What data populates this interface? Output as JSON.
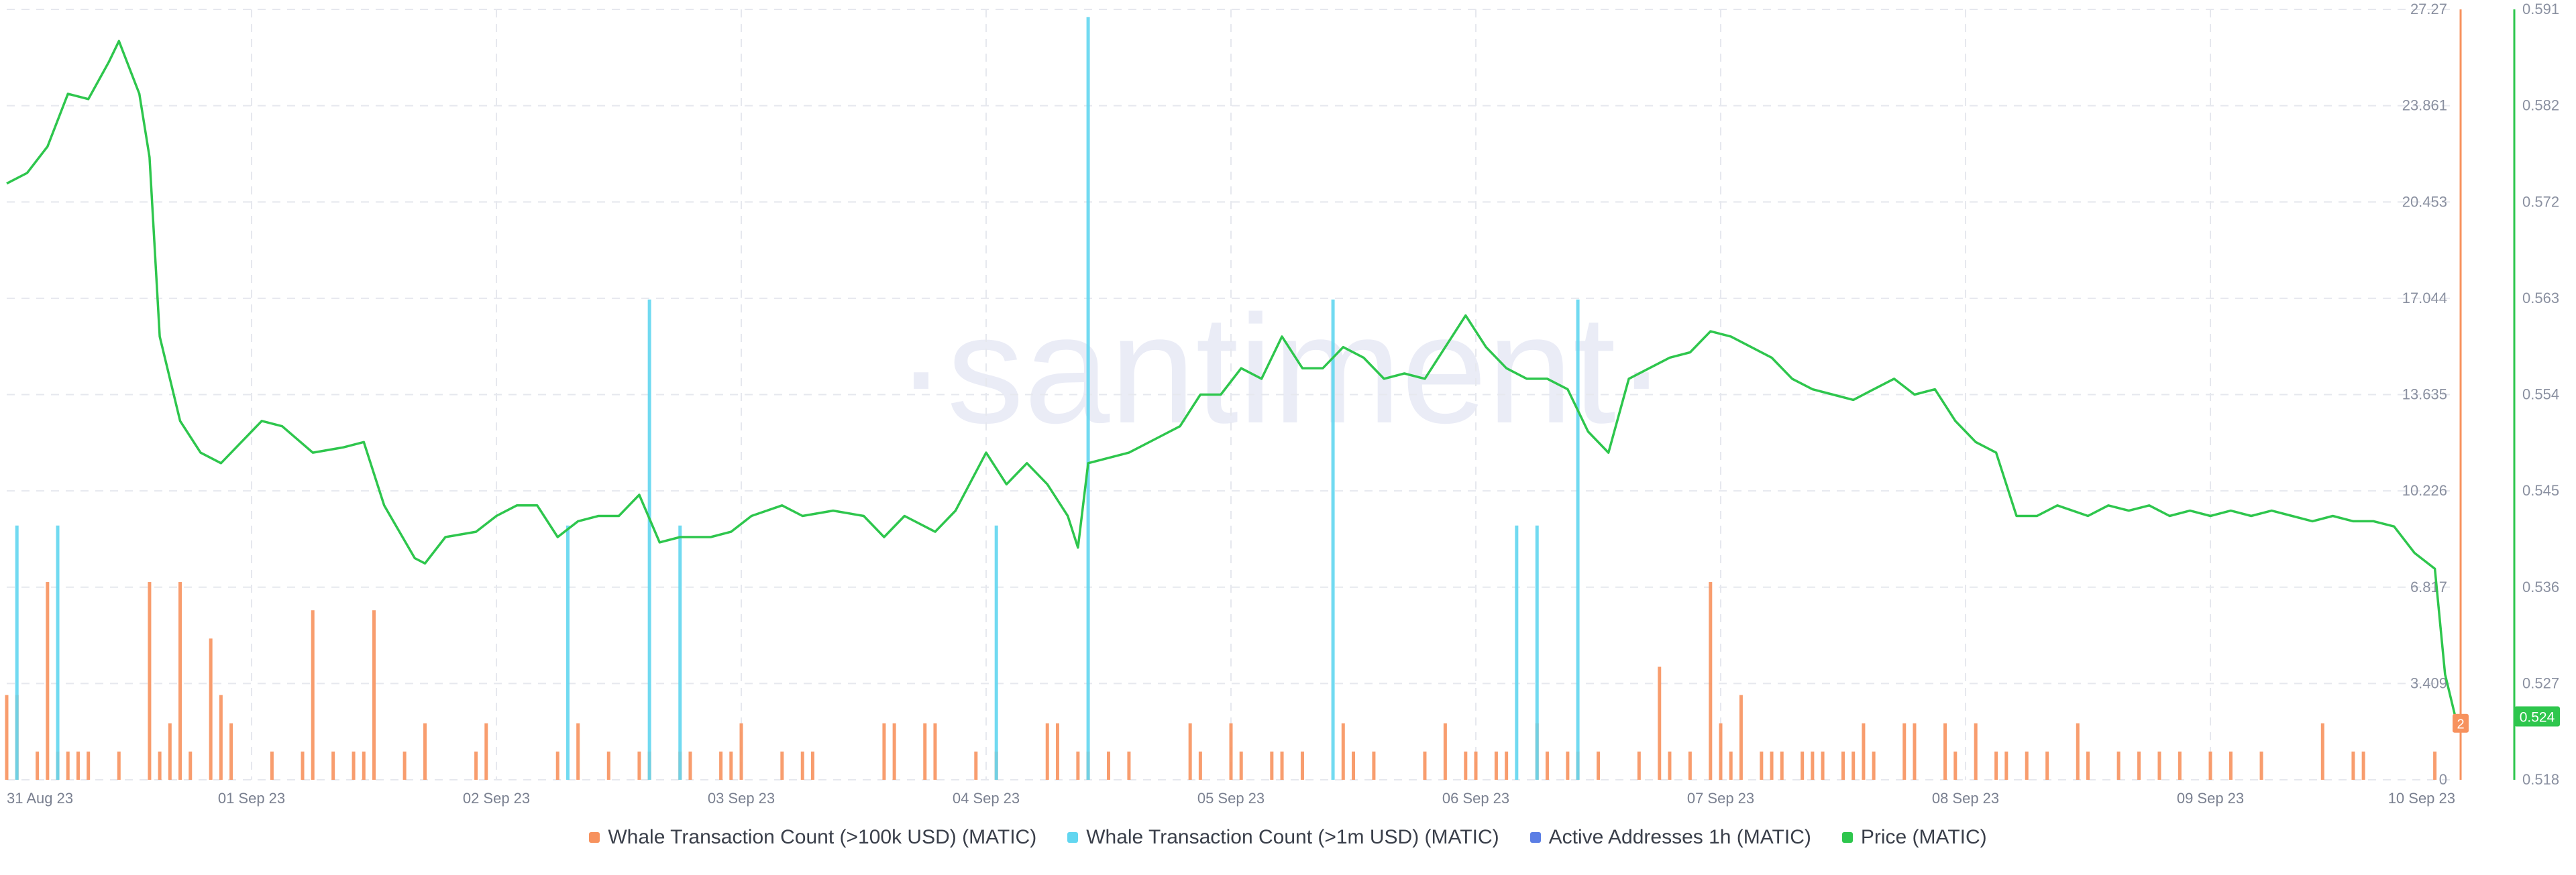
{
  "watermark": "·santiment·",
  "legend": [
    {
      "label": "Whale Transaction Count (>100k USD) (MATIC)",
      "color": "#f7925e"
    },
    {
      "label": "Whale Transaction Count (>1m USD) (MATIC)",
      "color": "#62d6f0"
    },
    {
      "label": "Active Addresses 1h (MATIC)",
      "color": "#5b7ee5"
    },
    {
      "label": "Price (MATIC)",
      "color": "#2ec64d"
    }
  ],
  "chart_data": {
    "type": "bar",
    "x_ticks": [
      "31 Aug 23",
      "01 Sep 23",
      "02 Sep 23",
      "03 Sep 23",
      "04 Sep 23",
      "05 Sep 23",
      "06 Sep 23",
      "07 Sep 23",
      "08 Sep 23",
      "09 Sep 23",
      "10 Sep 23"
    ],
    "x_range": [
      0,
      240
    ],
    "count_axis": {
      "ticks": [
        "0",
        "3.409",
        "6.817",
        "10.226",
        "13.635",
        "17.044",
        "20.453",
        "23.861",
        "27.27"
      ],
      "ylim": [
        0,
        27.27
      ],
      "color": "#f7925e",
      "last_value_label": "2"
    },
    "price_axis": {
      "ticks": [
        "0.518",
        "0.527",
        "0.536",
        "0.545",
        "0.554",
        "0.563",
        "0.572",
        "0.582",
        "0.591"
      ],
      "ylim": [
        0.518,
        0.591
      ],
      "color": "#2ec64d",
      "last_value_label": "0.524"
    },
    "grid": true,
    "series": [
      {
        "name": "Whale Transaction Count (>100k USD) (MATIC)",
        "type": "bar",
        "axis": "count",
        "color": "#f7925e",
        "points": [
          [
            0,
            3
          ],
          [
            1,
            3
          ],
          [
            3,
            1
          ],
          [
            4,
            7
          ],
          [
            5,
            1
          ],
          [
            6,
            1
          ],
          [
            7,
            1
          ],
          [
            8,
            1
          ],
          [
            11,
            1
          ],
          [
            14,
            7
          ],
          [
            15,
            1
          ],
          [
            16,
            2
          ],
          [
            17,
            7
          ],
          [
            18,
            1
          ],
          [
            20,
            5
          ],
          [
            21,
            3
          ],
          [
            22,
            2
          ],
          [
            26,
            1
          ],
          [
            29,
            1
          ],
          [
            30,
            6
          ],
          [
            32,
            1
          ],
          [
            34,
            1
          ],
          [
            35,
            1
          ],
          [
            36,
            6
          ],
          [
            39,
            1
          ],
          [
            41,
            2
          ],
          [
            46,
            1
          ],
          [
            47,
            2
          ],
          [
            54,
            1
          ],
          [
            56,
            2
          ],
          [
            59,
            1
          ],
          [
            62,
            1
          ],
          [
            63,
            1
          ],
          [
            66,
            1
          ],
          [
            67,
            1
          ],
          [
            70,
            1
          ],
          [
            71,
            1
          ],
          [
            72,
            2
          ],
          [
            76,
            1
          ],
          [
            78,
            1
          ],
          [
            79,
            1
          ],
          [
            86,
            2
          ],
          [
            87,
            2
          ],
          [
            90,
            2
          ],
          [
            91,
            2
          ],
          [
            95,
            1
          ],
          [
            97,
            1
          ],
          [
            102,
            2
          ],
          [
            103,
            2
          ],
          [
            105,
            1
          ],
          [
            106,
            1
          ],
          [
            108,
            1
          ],
          [
            110,
            1
          ],
          [
            116,
            2
          ],
          [
            117,
            1
          ],
          [
            120,
            2
          ],
          [
            121,
            1
          ],
          [
            124,
            1
          ],
          [
            125,
            1
          ],
          [
            127,
            1
          ],
          [
            131,
            2
          ],
          [
            132,
            1
          ],
          [
            134,
            1
          ],
          [
            139,
            1
          ],
          [
            141,
            2
          ],
          [
            143,
            1
          ],
          [
            144,
            1
          ],
          [
            146,
            1
          ],
          [
            147,
            1
          ],
          [
            150,
            2
          ],
          [
            151,
            1
          ],
          [
            153,
            1
          ],
          [
            154,
            1
          ],
          [
            156,
            1
          ],
          [
            160,
            1
          ],
          [
            162,
            4
          ],
          [
            163,
            1
          ],
          [
            165,
            1
          ],
          [
            167,
            7
          ],
          [
            168,
            2
          ],
          [
            169,
            1
          ],
          [
            170,
            3
          ],
          [
            172,
            1
          ],
          [
            173,
            1
          ],
          [
            174,
            1
          ],
          [
            176,
            1
          ],
          [
            177,
            1
          ],
          [
            178,
            1
          ],
          [
            180,
            1
          ],
          [
            181,
            1
          ],
          [
            182,
            2
          ],
          [
            183,
            1
          ],
          [
            186,
            2
          ],
          [
            187,
            2
          ],
          [
            190,
            2
          ],
          [
            191,
            1
          ],
          [
            193,
            2
          ],
          [
            195,
            1
          ],
          [
            196,
            1
          ],
          [
            198,
            1
          ],
          [
            200,
            1
          ],
          [
            203,
            2
          ],
          [
            204,
            1
          ],
          [
            207,
            1
          ],
          [
            209,
            1
          ],
          [
            211,
            1
          ],
          [
            213,
            1
          ],
          [
            216,
            1
          ],
          [
            218,
            1
          ],
          [
            221,
            1
          ],
          [
            227,
            2
          ],
          [
            230,
            1
          ],
          [
            231,
            1
          ],
          [
            238,
            1
          ]
        ]
      },
      {
        "name": "Whale Transaction Count (>1m USD) (MATIC)",
        "type": "bar",
        "axis": "count",
        "color": "#62d6f0",
        "points": [
          [
            1,
            9
          ],
          [
            5,
            9
          ],
          [
            55,
            9
          ],
          [
            63,
            17
          ],
          [
            66,
            9
          ],
          [
            97,
            9
          ],
          [
            106,
            27
          ],
          [
            130,
            17
          ],
          [
            148,
            9
          ],
          [
            150,
            9
          ],
          [
            154,
            17
          ]
        ]
      },
      {
        "name": "Price (MATIC)",
        "type": "line",
        "axis": "price",
        "color": "#2ec64d",
        "points": [
          [
            0,
            0.5745
          ],
          [
            2,
            0.5755
          ],
          [
            4,
            0.578
          ],
          [
            6,
            0.583
          ],
          [
            8,
            0.5825
          ],
          [
            10,
            0.586
          ],
          [
            11,
            0.588
          ],
          [
            13,
            0.583
          ],
          [
            14,
            0.577
          ],
          [
            15,
            0.56
          ],
          [
            17,
            0.552
          ],
          [
            19,
            0.549
          ],
          [
            21,
            0.548
          ],
          [
            23,
            0.55
          ],
          [
            25,
            0.552
          ],
          [
            27,
            0.5515
          ],
          [
            30,
            0.549
          ],
          [
            33,
            0.5495
          ],
          [
            35,
            0.55
          ],
          [
            37,
            0.544
          ],
          [
            40,
            0.539
          ],
          [
            41,
            0.5385
          ],
          [
            43,
            0.541
          ],
          [
            46,
            0.5415
          ],
          [
            48,
            0.543
          ],
          [
            50,
            0.544
          ],
          [
            52,
            0.544
          ],
          [
            54,
            0.541
          ],
          [
            56,
            0.5425
          ],
          [
            58,
            0.543
          ],
          [
            60,
            0.543
          ],
          [
            62,
            0.545
          ],
          [
            64,
            0.5405
          ],
          [
            66,
            0.541
          ],
          [
            69,
            0.541
          ],
          [
            71,
            0.5415
          ],
          [
            73,
            0.543
          ],
          [
            76,
            0.544
          ],
          [
            78,
            0.543
          ],
          [
            81,
            0.5435
          ],
          [
            84,
            0.543
          ],
          [
            86,
            0.541
          ],
          [
            88,
            0.543
          ],
          [
            91,
            0.5415
          ],
          [
            93,
            0.5435
          ],
          [
            96,
            0.549
          ],
          [
            98,
            0.546
          ],
          [
            100,
            0.548
          ],
          [
            102,
            0.546
          ],
          [
            104,
            0.543
          ],
          [
            105,
            0.54
          ],
          [
            106,
            0.548
          ],
          [
            108,
            0.5485
          ],
          [
            110,
            0.549
          ],
          [
            113,
            0.5505
          ],
          [
            115,
            0.5515
          ],
          [
            117,
            0.5545
          ],
          [
            119,
            0.5545
          ],
          [
            121,
            0.557
          ],
          [
            123,
            0.556
          ],
          [
            125,
            0.56
          ],
          [
            127,
            0.557
          ],
          [
            129,
            0.557
          ],
          [
            131,
            0.559
          ],
          [
            133,
            0.558
          ],
          [
            135,
            0.556
          ],
          [
            137,
            0.5565
          ],
          [
            139,
            0.556
          ],
          [
            141,
            0.559
          ],
          [
            143,
            0.562
          ],
          [
            145,
            0.559
          ],
          [
            147,
            0.557
          ],
          [
            149,
            0.556
          ],
          [
            151,
            0.556
          ],
          [
            153,
            0.555
          ],
          [
            155,
            0.551
          ],
          [
            157,
            0.549
          ],
          [
            159,
            0.556
          ],
          [
            161,
            0.557
          ],
          [
            163,
            0.558
          ],
          [
            165,
            0.5585
          ],
          [
            167,
            0.5605
          ],
          [
            169,
            0.56
          ],
          [
            171,
            0.559
          ],
          [
            173,
            0.558
          ],
          [
            175,
            0.556
          ],
          [
            177,
            0.555
          ],
          [
            179,
            0.5545
          ],
          [
            181,
            0.554
          ],
          [
            183,
            0.555
          ],
          [
            185,
            0.556
          ],
          [
            187,
            0.5545
          ],
          [
            189,
            0.555
          ],
          [
            191,
            0.552
          ],
          [
            193,
            0.55
          ],
          [
            195,
            0.549
          ],
          [
            197,
            0.543
          ],
          [
            199,
            0.543
          ],
          [
            201,
            0.544
          ],
          [
            204,
            0.543
          ],
          [
            206,
            0.544
          ],
          [
            208,
            0.5435
          ],
          [
            210,
            0.544
          ],
          [
            212,
            0.543
          ],
          [
            214,
            0.5435
          ],
          [
            216,
            0.543
          ],
          [
            218,
            0.5435
          ],
          [
            220,
            0.543
          ],
          [
            222,
            0.5435
          ],
          [
            224,
            0.543
          ],
          [
            226,
            0.5425
          ],
          [
            228,
            0.543
          ],
          [
            230,
            0.5425
          ],
          [
            232,
            0.5425
          ],
          [
            234,
            0.542
          ],
          [
            236,
            0.5395
          ],
          [
            238,
            0.538
          ],
          [
            239,
            0.528
          ],
          [
            240,
            0.524
          ]
        ]
      }
    ]
  }
}
